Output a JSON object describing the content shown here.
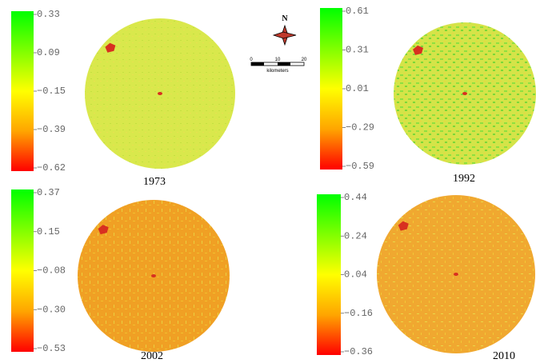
{
  "panels": [
    {
      "year": "1973",
      "colorbar_labels": [
        "0.33",
        "0.09",
        "−0.15",
        "−0.39",
        "−0.62"
      ]
    },
    {
      "year": "1992",
      "colorbar_labels": [
        "0.61",
        "0.31",
        "0.01",
        "−0.29",
        "−0.59"
      ]
    },
    {
      "year": "2002",
      "colorbar_labels": [
        "0.37",
        "0.15",
        "−0.08",
        "−0.30",
        "−0.53"
      ]
    },
    {
      "year": "2010",
      "colorbar_labels": [
        "0.44",
        "0.24",
        "0.04",
        "−0.16",
        "−0.36"
      ]
    }
  ],
  "north_arrow": "N",
  "scale_bar": {
    "ticks": [
      "0",
      "10",
      "20"
    ],
    "unit": "kilometers"
  }
}
